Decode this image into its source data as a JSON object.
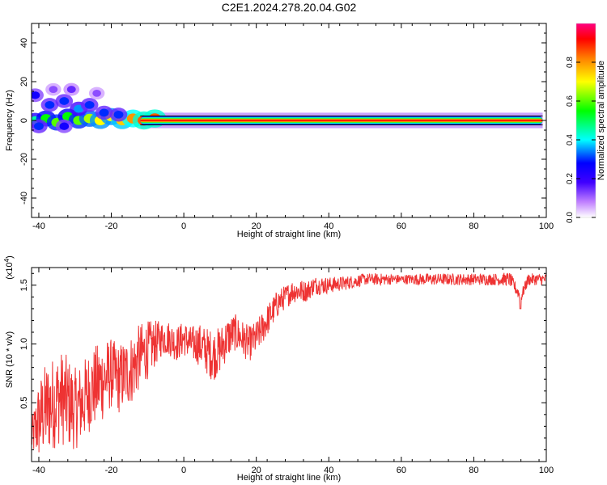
{
  "figure_title": "C2E1.2024.278.20.04.G02",
  "chart_data": [
    {
      "type": "heatmap",
      "title": "C2E1.2024.278.20.04.G02",
      "xlabel": "Height of straight line (km)",
      "ylabel": "Frequency (Hz)",
      "xlim": [
        -42,
        100
      ],
      "ylim": [
        -50,
        50
      ],
      "xticks": [
        -40,
        -20,
        0,
        20,
        40,
        60,
        80,
        100
      ],
      "yticks": [
        -40,
        -20,
        0,
        20,
        40
      ],
      "colorbar": {
        "label": "Normalized spectral amplitude",
        "ticks": [
          0.0,
          0.2,
          0.4,
          0.6,
          0.8
        ],
        "tick_labels": [
          "0.0",
          "0.2",
          "0.4",
          "0.6",
          "0.8"
        ],
        "range": [
          0,
          1
        ],
        "colormap": [
          "#ffffff",
          "#c080ff",
          "#4000ff",
          "#0000ff",
          "#00ffff",
          "#00ff00",
          "#ffff00",
          "#ff8000",
          "#ff0000",
          "#ff0080"
        ]
      },
      "ridge": {
        "frequency": 0,
        "x_start": -42,
        "x_end": 99
      },
      "blobs": [
        {
          "x": -41,
          "y": 0,
          "a": 0.45
        },
        {
          "x": -38,
          "y": 1,
          "a": 0.55
        },
        {
          "x": -35,
          "y": -1,
          "a": 0.6
        },
        {
          "x": -32,
          "y": 2,
          "a": 0.55
        },
        {
          "x": -29,
          "y": 0,
          "a": 0.6
        },
        {
          "x": -26,
          "y": 1,
          "a": 0.65
        },
        {
          "x": -23,
          "y": 0,
          "a": 0.7
        },
        {
          "x": -20,
          "y": 2,
          "a": 0.7
        },
        {
          "x": -17,
          "y": 0,
          "a": 0.75
        },
        {
          "x": -14,
          "y": 1,
          "a": 0.8
        },
        {
          "x": -11,
          "y": 0,
          "a": 0.85
        },
        {
          "x": -8,
          "y": 1,
          "a": 0.85
        },
        {
          "x": -41,
          "y": 13,
          "a": 0.25
        },
        {
          "x": -37,
          "y": 8,
          "a": 0.3
        },
        {
          "x": -33,
          "y": 10,
          "a": 0.3
        },
        {
          "x": -29,
          "y": 6,
          "a": 0.35
        },
        {
          "x": -26,
          "y": 8,
          "a": 0.3
        },
        {
          "x": -31,
          "y": 16,
          "a": 0.15
        },
        {
          "x": -36,
          "y": 16,
          "a": 0.12
        },
        {
          "x": -24,
          "y": 14,
          "a": 0.12
        },
        {
          "x": -40,
          "y": -3,
          "a": 0.3
        },
        {
          "x": -33,
          "y": -3,
          "a": 0.25
        },
        {
          "x": -22,
          "y": 4,
          "a": 0.3
        },
        {
          "x": -18,
          "y": 3,
          "a": 0.3
        }
      ]
    },
    {
      "type": "line",
      "xlabel": "Height of straight line (km)",
      "ylabel": "SNR (10 * v/v)",
      "y_multiplier": "(x10^4)",
      "xlim": [
        -42,
        100
      ],
      "ylim": [
        0,
        1.65
      ],
      "xticks": [
        -40,
        -20,
        0,
        20,
        40,
        60,
        80,
        100
      ],
      "yticks": [
        0.5,
        1.0,
        1.5
      ],
      "ytick_labels": [
        "0.5",
        "1.0",
        "1.5"
      ],
      "color": "#ee3333",
      "x": [
        -42,
        -40,
        -38,
        -36,
        -34,
        -32,
        -30,
        -28,
        -26,
        -24,
        -22,
        -20,
        -18,
        -16,
        -14,
        -12,
        -10,
        -8,
        -6,
        -4,
        -2,
        0,
        2,
        4,
        6,
        8,
        10,
        12,
        14,
        16,
        18,
        20,
        22,
        24,
        26,
        28,
        30,
        32,
        34,
        36,
        38,
        40,
        45,
        50,
        55,
        60,
        65,
        70,
        75,
        80,
        85,
        90,
        93,
        95,
        100
      ],
      "y": [
        0.2,
        0.35,
        0.45,
        0.5,
        0.55,
        0.5,
        0.45,
        0.5,
        0.6,
        0.65,
        0.7,
        0.75,
        0.7,
        0.75,
        0.8,
        0.9,
        0.95,
        1.0,
        1.05,
        1.05,
        1.0,
        1.05,
        1.0,
        1.0,
        0.95,
        0.9,
        0.95,
        1.05,
        1.1,
        1.05,
        1.0,
        1.05,
        1.15,
        1.25,
        1.35,
        1.4,
        1.45,
        1.45,
        1.45,
        1.5,
        1.5,
        1.5,
        1.52,
        1.55,
        1.55,
        1.55,
        1.55,
        1.55,
        1.55,
        1.55,
        1.55,
        1.55,
        1.4,
        1.55,
        1.55
      ],
      "noise": [
        0.15,
        0.35,
        0.4,
        0.4,
        0.4,
        0.4,
        0.35,
        0.35,
        0.35,
        0.35,
        0.35,
        0.3,
        0.3,
        0.3,
        0.3,
        0.28,
        0.25,
        0.2,
        0.15,
        0.15,
        0.15,
        0.15,
        0.15,
        0.18,
        0.2,
        0.22,
        0.2,
        0.18,
        0.16,
        0.16,
        0.15,
        0.15,
        0.14,
        0.13,
        0.12,
        0.1,
        0.1,
        0.1,
        0.09,
        0.08,
        0.08,
        0.07,
        0.06,
        0.05,
        0.05,
        0.04,
        0.05,
        0.05,
        0.05,
        0.05,
        0.05,
        0.06,
        0.05,
        0.05,
        0.05
      ]
    }
  ]
}
